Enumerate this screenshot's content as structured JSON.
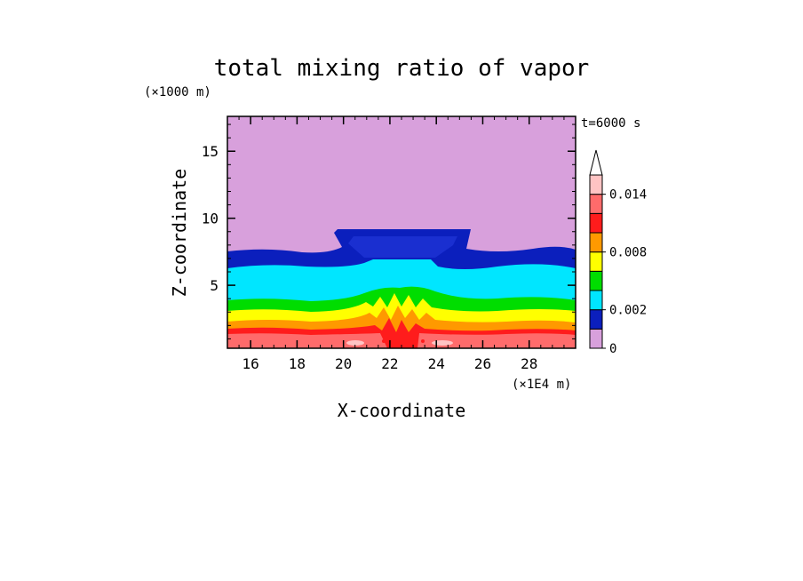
{
  "chart_data": {
    "type": "heatmap",
    "title": "total mixing ratio of vapor",
    "xlabel": "X-coordinate",
    "ylabel": "Z-coordinate",
    "x_unit": "(×1E4 m)",
    "y_unit": "(×1000 m)",
    "time_label": "t=6000 s",
    "xlim": [
      15,
      30
    ],
    "ylim": [
      0.3,
      17.6
    ],
    "x_ticks": [
      "16",
      "18",
      "20",
      "22",
      "24",
      "26",
      "28"
    ],
    "y_ticks": [
      "5",
      "10",
      "15"
    ],
    "colorbar": {
      "levels": [
        0,
        0.001,
        0.002,
        0.004,
        0.006,
        0.008,
        0.01,
        0.012,
        0.014,
        0.016
      ],
      "tick_labels": [
        "0",
        "0.002",
        "0.008",
        "0.014"
      ],
      "colors": [
        "#d8a0dc",
        "#0b1fbd",
        "#00e6ff",
        "#00dd00",
        "#ffff00",
        "#ff9900",
        "#ff1c1c",
        "#ff6b6b",
        "#ffc4c4"
      ],
      "extend": "max"
    },
    "profile": [
      {
        "z": 1.0,
        "q": 0.0128
      },
      {
        "z": 1.7,
        "q": 0.0112
      },
      {
        "z": 2.4,
        "q": 0.0092
      },
      {
        "z": 3.1,
        "q": 0.0072
      },
      {
        "z": 4.0,
        "q": 0.0052
      },
      {
        "z": 5.5,
        "q": 0.003
      },
      {
        "z": 7.3,
        "q": 0.0015
      },
      {
        "z": 12.0,
        "q": 0.0005
      }
    ],
    "anvil": {
      "x_range": [
        19.6,
        25.4
      ],
      "z_top": 9.2,
      "z_bottom": 7.7,
      "value": 0.0015
    }
  }
}
